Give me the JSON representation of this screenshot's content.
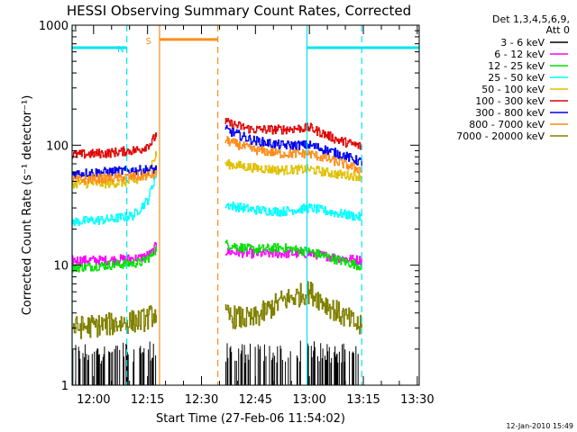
{
  "chart_data": {
    "type": "line",
    "title": "HESSI Observing Summary Count Rates, Corrected",
    "xlabel": "Start Time (27-Feb-06 11:54:02)",
    "ylabel": "Corrected Count Rate (s⁻¹ detector⁻¹)",
    "yscale": "log",
    "ylim": [
      1,
      1000
    ],
    "xlim_minutes": [
      0,
      96.5
    ],
    "x_ticks": [
      "12:00",
      "12:15",
      "12:30",
      "12:45",
      "13:00",
      "13:15",
      "13:30"
    ],
    "y_ticks": [
      "1",
      "10",
      "100",
      "1000"
    ],
    "legend_title": "Det 1,3,4,5,6,9,",
    "legend_subtitle": "Att 0",
    "timestamp": "12-Jan-2010 15:49",
    "flags": [
      {
        "label": "N",
        "color": "#00e5ee",
        "level": 650,
        "segments": [
          [
            0,
            15.2
          ],
          [
            65.3,
            96.5
          ]
        ]
      },
      {
        "label": "S",
        "color": "#ff8c1a",
        "level": 760,
        "segments": [
          [
            24.3,
            40.5
          ]
        ]
      }
    ],
    "vertical_markers": [
      {
        "t": 0.0,
        "color": "#00e5ee",
        "style": "solid"
      },
      {
        "t": 15.2,
        "color": "#00e5ee",
        "style": "dashed"
      },
      {
        "t": 24.3,
        "color": "#ff8c1a",
        "style": "solid"
      },
      {
        "t": 40.5,
        "color": "#ff8c1a",
        "style": "dashed"
      },
      {
        "t": 65.3,
        "color": "#00e5ee",
        "style": "solid"
      },
      {
        "t": 80.5,
        "color": "#00e5ee",
        "style": "dashed"
      }
    ],
    "data_segments": [
      [
        0,
        23.5
      ],
      [
        42.5,
        80.5
      ]
    ],
    "series": [
      {
        "name": "3 - 6 keV",
        "color": "#000000",
        "segments": [
          {
            "t": [
              0,
              10,
              20,
              23.5
            ],
            "y": [
              1.5,
              1.5,
              1.6,
              1.6
            ]
          },
          {
            "t": [
              42.5,
              55,
              66,
              75,
              80.5
            ],
            "y": [
              1.5,
              1.5,
              1.6,
              1.5,
              1.5
            ]
          }
        ]
      },
      {
        "name": "6 - 12 keV",
        "color": "#ff00ff",
        "segments": [
          {
            "t": [
              0,
              10,
              19,
              22,
              23.5
            ],
            "y": [
              11,
              11,
              11.5,
              12.5,
              15
            ]
          },
          {
            "t": [
              42.5,
              50,
              58,
              66,
              74,
              80.5
            ],
            "y": [
              13,
              12.5,
              12.5,
              12.5,
              11.5,
              11
            ]
          }
        ]
      },
      {
        "name": "12 - 25 keV",
        "color": "#00e000",
        "segments": [
          {
            "t": [
              0,
              10,
              19,
              22,
              23.5
            ],
            "y": [
              9.5,
              10,
              10.5,
              12,
              14
            ]
          },
          {
            "t": [
              42.5,
              50,
              58,
              66,
              74,
              80.5
            ],
            "y": [
              15,
              13.5,
              14,
              13,
              11,
              9.8
            ]
          }
        ]
      },
      {
        "name": "25 - 50 keV",
        "color": "#00ffff",
        "segments": [
          {
            "t": [
              0,
              10,
              17,
              21,
              23.5
            ],
            "y": [
              23,
              24,
              26,
              35,
              60
            ]
          },
          {
            "t": [
              42.5,
              50,
              58,
              66,
              74,
              80.5
            ],
            "y": [
              32,
              29,
              28,
              30,
              27,
              25
            ]
          }
        ]
      },
      {
        "name": "50 - 100 keV",
        "color": "#e0c000",
        "segments": [
          {
            "t": [
              0,
              10,
              18,
              21,
              23.5
            ],
            "y": [
              48,
              48,
              50,
              60,
              85
            ]
          },
          {
            "t": [
              42.5,
              50,
              58,
              66,
              74,
              80.5
            ],
            "y": [
              70,
              65,
              62,
              63,
              57,
              55
            ]
          }
        ]
      },
      {
        "name": "100 - 300 keV",
        "color": "#e00000",
        "segments": [
          {
            "t": [
              0,
              10,
              19,
              22,
              23.5
            ],
            "y": [
              83,
              86,
              92,
              105,
              125
            ]
          },
          {
            "t": [
              42.5,
              50,
              58,
              66,
              74,
              80.5
            ],
            "y": [
              155,
              135,
              135,
              140,
              110,
              97
            ]
          }
        ]
      },
      {
        "name": "300 - 800 keV",
        "color": "#0000ee",
        "segments": [
          {
            "t": [
              0,
              10,
              19,
              23.5
            ],
            "y": [
              58,
              60,
              62,
              63
            ]
          },
          {
            "t": [
              42.5,
              50,
              58,
              66,
              74,
              80.5
            ],
            "y": [
              135,
              110,
              100,
              100,
              85,
              72
            ]
          }
        ]
      },
      {
        "name": "800 - 7000 keV",
        "color": "#ff8c1a",
        "segments": [
          {
            "t": [
              0,
              10,
              19,
              23.5
            ],
            "y": [
              51,
              53,
              55,
              57
            ]
          },
          {
            "t": [
              42.5,
              50,
              58,
              66,
              74,
              80.5
            ],
            "y": [
              110,
              92,
              85,
              85,
              72,
              62
            ]
          }
        ]
      },
      {
        "name": "7000 - 20000 keV",
        "color": "#808000",
        "segments": [
          {
            "t": [
              0,
              10,
              20,
              23.5
            ],
            "y": [
              3.0,
              3.2,
              3.5,
              4.0
            ]
          },
          {
            "t": [
              42.5,
              50,
              58,
              66,
              74,
              80.5
            ],
            "y": [
              3.8,
              3.5,
              5.0,
              6.0,
              4.0,
              3.0
            ]
          }
        ]
      }
    ]
  }
}
